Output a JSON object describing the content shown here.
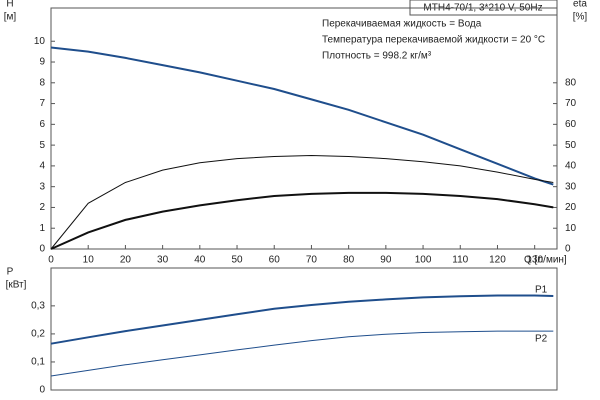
{
  "chart_data": [
    {
      "type": "line",
      "title": "MTH4-70/1, 3*210 V, 50Hz",
      "annotations": [
        "Перекачиваемая жидкость = Вода",
        "Температура перекачиваемой жидкости = 20 °C",
        "Плотность = 998.2 кг/м³"
      ],
      "ylabel": "H",
      "yunit": "[м]",
      "y2label": "eta",
      "y2unit": "[%]",
      "xlabel": "Q [л/мин]",
      "x": [
        0,
        10,
        20,
        30,
        40,
        50,
        60,
        70,
        80,
        90,
        100,
        110,
        120,
        130,
        135
      ],
      "series": [
        {
          "color": "#1f4e8c",
          "line_width": 2,
          "values": [
            9.7,
            9.5,
            9.2,
            8.85,
            8.5,
            8.1,
            7.7,
            7.2,
            6.7,
            6.1,
            5.5,
            4.8,
            4.1,
            3.4,
            3.1
          ]
        },
        {
          "color": "#111111",
          "line_width": 1,
          "axis": "y2",
          "values": [
            0,
            22,
            32,
            38,
            41.5,
            43.5,
            44.5,
            45,
            44.5,
            43.5,
            42,
            40,
            37,
            33.5,
            32
          ]
        },
        {
          "color": "#111111",
          "line_width": 2,
          "axis": "y2",
          "values": [
            0,
            8,
            14,
            18,
            21,
            23.5,
            25.5,
            26.5,
            27,
            27,
            26.5,
            25.5,
            24,
            21.5,
            20
          ]
        }
      ],
      "xlim": [
        0,
        136
      ],
      "xticks": [
        0,
        10,
        20,
        30,
        40,
        50,
        60,
        70,
        80,
        90,
        100,
        110,
        120,
        130
      ],
      "ylim": [
        0,
        11.6
      ],
      "yticks": [
        0,
        1,
        2,
        3,
        4,
        5,
        6,
        7,
        8,
        9,
        10
      ],
      "y2lim": [
        0,
        116
      ],
      "y2ticks": [
        0,
        10,
        20,
        30,
        40,
        50,
        60,
        70,
        80
      ]
    },
    {
      "type": "line",
      "ylabel": "P",
      "yunit": "[кВт]",
      "x": [
        0,
        10,
        20,
        30,
        40,
        50,
        60,
        70,
        80,
        90,
        100,
        110,
        120,
        130,
        135
      ],
      "series": [
        {
          "name": "P1",
          "color": "#1f4e8c",
          "line_width": 2,
          "values": [
            0.165,
            0.188,
            0.21,
            0.23,
            0.25,
            0.27,
            0.29,
            0.303,
            0.315,
            0.323,
            0.33,
            0.334,
            0.337,
            0.337,
            0.335
          ]
        },
        {
          "name": "P2",
          "color": "#1f4e8c",
          "line_width": 1,
          "values": [
            0.05,
            0.07,
            0.09,
            0.108,
            0.125,
            0.143,
            0.16,
            0.176,
            0.19,
            0.199,
            0.205,
            0.208,
            0.21,
            0.21,
            0.21
          ]
        }
      ],
      "xlim": [
        0,
        136
      ],
      "ylim": [
        0,
        0.435
      ],
      "yticks": [
        0,
        {
          "value": 0.1,
          "label": "0,1"
        },
        {
          "value": 0.2,
          "label": "0,2"
        },
        {
          "value": 0.3,
          "label": "0,3"
        }
      ]
    }
  ]
}
